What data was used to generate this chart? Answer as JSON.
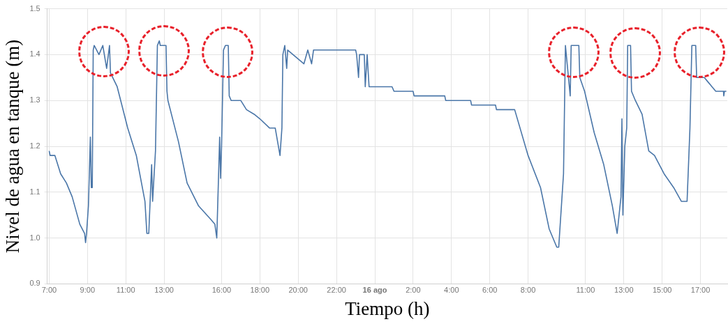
{
  "chart_data": {
    "type": "line",
    "xlabel": "Tiempo (h)",
    "ylabel": "Nivel de agua en tanque (m)",
    "xlim": [
      "--08-15T06:54",
      "--08-16T18:24"
    ],
    "xticks": [
      {
        "value": "--08-15T07:00",
        "label": "7:00"
      },
      {
        "value": "--08-15T09:00",
        "label": "9:00"
      },
      {
        "value": "--08-15T11:00",
        "label": "11:00"
      },
      {
        "value": "--08-15T13:00",
        "label": "13:00"
      },
      {
        "value": "--08-15T16:00",
        "label": "16:00"
      },
      {
        "value": "--08-15T18:00",
        "label": "18:00"
      },
      {
        "value": "--08-15T20:00",
        "label": "20:00"
      },
      {
        "value": "--08-15T22:00",
        "label": "22:00"
      },
      {
        "value": "--08-16T00:00",
        "label": "16 ago"
      },
      {
        "value": "--08-16T02:00",
        "label": "2:00"
      },
      {
        "value": "--08-16T04:00",
        "label": "4:00"
      },
      {
        "value": "--08-16T06:00",
        "label": "6:00"
      },
      {
        "value": "--08-16T08:00",
        "label": "8:00"
      },
      {
        "value": "--08-16T11:00",
        "label": "11:00"
      },
      {
        "value": "--08-16T13:00",
        "label": "13:00"
      },
      {
        "value": "--08-16T15:00",
        "label": "15:00"
      },
      {
        "value": "--08-16T17:00",
        "label": "17:00"
      }
    ],
    "ylim": [
      0.9,
      1.5
    ],
    "yticks": [
      0.9,
      {
        "value": 1,
        "label": "1.0"
      },
      1.1,
      1.2,
      1.3,
      1.4,
      1.5
    ],
    "grid": true,
    "legend": false,
    "marker": "none",
    "line_style": "solid",
    "series": [
      {
        "color": "#4a76a8",
        "x": [
          "--08-15T07:00",
          "--08-15T07:03",
          "--08-15T07:18",
          "--08-15T07:36",
          "--08-15T07:54",
          "--08-15T08:12",
          "--08-15T08:36",
          "--08-15T08:51",
          "--08-15T08:54",
          "--08-15T08:57",
          "--08-15T09:03",
          "--08-15T09:09",
          "--08-15T09:12",
          "--08-15T09:15",
          "--08-15T09:18",
          "--08-15T09:21",
          "--08-15T09:36",
          "--08-15T09:48",
          "--08-15T10:00",
          "--08-15T10:09",
          "--08-15T10:12",
          "--08-15T10:33",
          "--08-15T11:06",
          "--08-15T11:33",
          "--08-15T12:00",
          "--08-15T12:06",
          "--08-15T12:12",
          "--08-15T12:21",
          "--08-15T12:24",
          "--08-15T12:33",
          "--08-15T12:39",
          "--08-15T12:45",
          "--08-15T12:48",
          "--08-15T13:06",
          "--08-15T13:09",
          "--08-15T13:12",
          "--08-15T13:45",
          "--08-15T14:12",
          "--08-15T14:48",
          "--08-15T15:27",
          "--08-15T15:39",
          "--08-15T15:45",
          "--08-15T15:54",
          "--08-15T15:57",
          "--08-15T16:00",
          "--08-15T16:06",
          "--08-15T16:12",
          "--08-15T16:21",
          "--08-15T16:24",
          "--08-15T16:30",
          "--08-15T17:00",
          "--08-15T17:18",
          "--08-15T17:42",
          "--08-15T18:00",
          "--08-15T18:30",
          "--08-15T18:48",
          "--08-15T19:03",
          "--08-15T19:09",
          "--08-15T19:12",
          "--08-15T19:18",
          "--08-15T19:24",
          "--08-15T19:27",
          "--08-15T20:18",
          "--08-15T20:30",
          "--08-15T20:42",
          "--08-15T20:48",
          "--08-15T23:00",
          "--08-15T23:03",
          "--08-15T23:09",
          "--08-15T23:12",
          "--08-15T23:27",
          "--08-15T23:30",
          "--08-15T23:36",
          "--08-15T23:42",
          "--08-16T00:54",
          "--08-16T01:00",
          "--08-16T02:00",
          "--08-16T02:03",
          "--08-16T03:39",
          "--08-16T03:42",
          "--08-16T05:00",
          "--08-16T05:03",
          "--08-16T06:18",
          "--08-16T06:21",
          "--08-16T07:18",
          "--08-16T08:00",
          "--08-16T08:39",
          "--08-16T09:06",
          "--08-16T09:30",
          "--08-16T09:36",
          "--08-16T09:51",
          "--08-16T09:57",
          "--08-16T10:12",
          "--08-16T10:15",
          "--08-16T10:39",
          "--08-16T10:42",
          "--08-16T10:57",
          "--08-16T11:27",
          "--08-16T11:57",
          "--08-16T12:24",
          "--08-16T12:39",
          "--08-16T12:51",
          "--08-16T12:54",
          "--08-16T12:57",
          "--08-16T13:03",
          "--08-16T13:09",
          "--08-16T13:12",
          "--08-16T13:21",
          "--08-16T13:24",
          "--08-16T13:36",
          "--08-16T13:57",
          "--08-16T14:18",
          "--08-16T14:36",
          "--08-16T15:06",
          "--08-16T15:36",
          "--08-16T16:00",
          "--08-16T16:18",
          "--08-16T16:27",
          "--08-16T16:33",
          "--08-16T16:45",
          "--08-16T16:48",
          "--08-16T17:12",
          "--08-16T17:24",
          "--08-16T17:36",
          "--08-16T17:48",
          "--08-16T18:12",
          "--08-16T18:13",
          "--08-16T18:15",
          "--08-16T18:21"
        ],
        "values": [
          1.19,
          1.18,
          1.18,
          1.14,
          1.12,
          1.09,
          1.03,
          1.01,
          0.99,
          1.01,
          1.07,
          1.22,
          1.11,
          1.11,
          1.41,
          1.42,
          1.4,
          1.42,
          1.37,
          1.42,
          1.36,
          1.33,
          1.24,
          1.18,
          1.08,
          1.01,
          1.01,
          1.16,
          1.08,
          1.19,
          1.42,
          1.43,
          1.42,
          1.42,
          1.32,
          1.3,
          1.21,
          1.12,
          1.07,
          1.04,
          1.03,
          1.0,
          1.22,
          1.13,
          1.2,
          1.41,
          1.42,
          1.42,
          1.31,
          1.3,
          1.3,
          1.28,
          1.27,
          1.26,
          1.24,
          1.24,
          1.18,
          1.24,
          1.4,
          1.42,
          1.37,
          1.41,
          1.38,
          1.41,
          1.38,
          1.41,
          1.41,
          1.4,
          1.35,
          1.4,
          1.4,
          1.33,
          1.4,
          1.33,
          1.33,
          1.32,
          1.32,
          1.31,
          1.31,
          1.3,
          1.3,
          1.29,
          1.29,
          1.28,
          1.28,
          1.18,
          1.11,
          1.02,
          0.98,
          0.98,
          1.14,
          1.42,
          1.31,
          1.42,
          1.42,
          1.35,
          1.32,
          1.23,
          1.16,
          1.07,
          1.01,
          1.09,
          1.26,
          1.05,
          1.2,
          1.24,
          1.42,
          1.42,
          1.32,
          1.3,
          1.27,
          1.19,
          1.18,
          1.14,
          1.11,
          1.08,
          1.08,
          1.24,
          1.42,
          1.42,
          1.35,
          1.35,
          1.34,
          1.33,
          1.32,
          1.32,
          1.31,
          1.32,
          1.32
        ]
      }
    ]
  }
}
